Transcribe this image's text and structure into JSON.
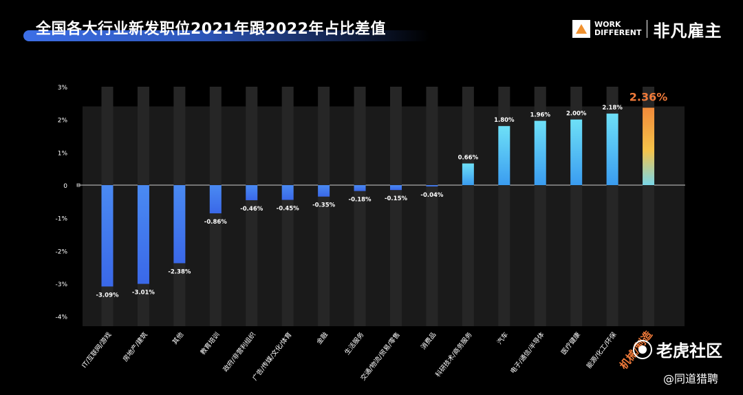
{
  "header": {
    "title": "全国各大行业新发职位2021年跟2022年占比差值"
  },
  "logo": {
    "line1": "WORK",
    "line2": "DIFFERENT",
    "brand_cn": "非凡雇主"
  },
  "watermarks": {
    "community": "老虎社区",
    "handle": "@同道猎聘"
  },
  "colors": {
    "background": "#000000",
    "bar_blue_top": "#6ee0f7",
    "bar_blue_bottom": "#3a78f0",
    "highlight_top": "#f08a3a",
    "highlight_mid": "#f5c34a",
    "highlight_bottom": "#7ad7e8",
    "highlight_label": "#f07a3a",
    "track": "#262626",
    "plot_bg": "#1a1a1a"
  },
  "chart_data": {
    "type": "bar",
    "title": "全国各大行业新发职位2021年跟2022年占比差值",
    "xlabel": "",
    "ylabel": "",
    "ylim": [
      -4.3,
      3.0
    ],
    "yticks": [
      {
        "value": 3,
        "label": "3%"
      },
      {
        "value": 2,
        "label": "2%"
      },
      {
        "value": 1,
        "label": "1%"
      },
      {
        "value": 0,
        "label": "0"
      },
      {
        "value": -1,
        "label": "-1%"
      },
      {
        "value": -2,
        "label": "-2%"
      },
      {
        "value": -3,
        "label": "-3%"
      },
      {
        "value": -4,
        "label": "-4%"
      }
    ],
    "categories": [
      "IT/互联网/游戏",
      "房地产/建筑",
      "其他",
      "教育培训",
      "政府/非营利组织",
      "广告/传媒/文化/体育",
      "金融",
      "生活服务",
      "交通/物流/贸易/零售",
      "消费品",
      "科研技术/商务服务",
      "汽车",
      "电子/通信/半导体",
      "医疗健康",
      "能源/化工/环保",
      "机械/制造"
    ],
    "values": [
      -3.09,
      -3.01,
      -2.38,
      -0.86,
      -0.46,
      -0.45,
      -0.35,
      -0.18,
      -0.15,
      -0.04,
      0.66,
      1.8,
      1.96,
      2.0,
      2.18,
      2.36
    ],
    "value_labels": [
      "-3.09%",
      "-3.01%",
      "-2.38%",
      "-0.86%",
      "-0.46%",
      "-0.45%",
      "-0.35%",
      "-0.18%",
      "-0.15%",
      "-0.04%",
      "0.66%",
      "1.80%",
      "1.96%",
      "2.00%",
      "2.18%",
      "2.36%"
    ],
    "highlight_index": 15,
    "grid": false,
    "legend": "none"
  }
}
